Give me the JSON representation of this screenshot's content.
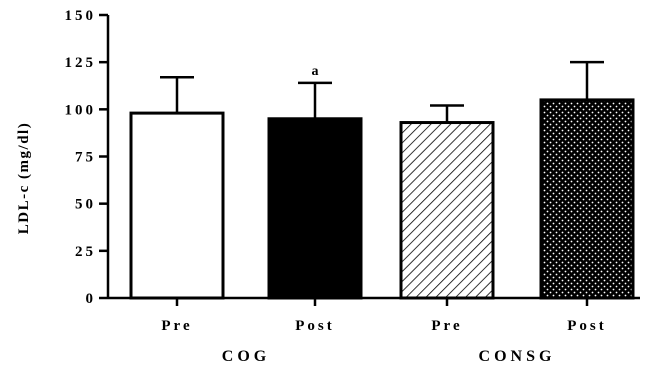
{
  "chart_data": {
    "type": "bar",
    "ylabel": "LDL-c (mg/dl)",
    "ylim": [
      0,
      150
    ],
    "yticks": [
      0,
      25,
      50,
      75,
      100,
      125,
      150
    ],
    "ytick_labels": [
      "0",
      "25",
      "50",
      "75",
      "100",
      "125",
      "150"
    ],
    "categories": [
      "Pre",
      "Post",
      "Pre",
      "Post"
    ],
    "groups": [
      {
        "label": "COG",
        "categories": [
          "Pre",
          "Post"
        ]
      },
      {
        "label": "CONSG",
        "categories": [
          "Pre",
          "Post"
        ]
      }
    ],
    "values": [
      98,
      95,
      93,
      105
    ],
    "error": [
      19,
      19,
      9,
      20
    ],
    "fills": [
      "white",
      "black",
      "diagonal-hatch",
      "dots"
    ],
    "annotations": [
      {
        "category_index": 1,
        "text": "a"
      }
    ],
    "grid": false,
    "colors": {
      "bar_stroke": "#000000",
      "solid_fill": "#000000",
      "hatch": "#000000"
    }
  }
}
